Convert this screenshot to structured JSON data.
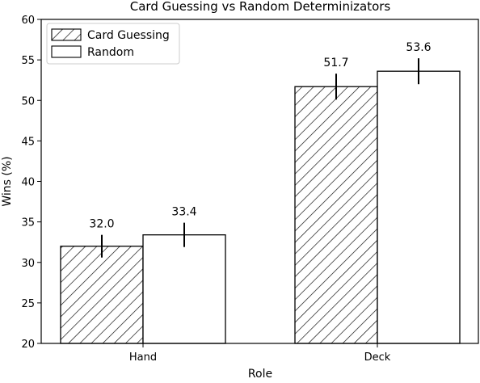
{
  "chart_data": {
    "type": "bar",
    "title": "Card Guessing vs Random Determinizators",
    "xlabel": "Role",
    "ylabel": "Wins (%)",
    "categories": [
      "Hand",
      "Deck"
    ],
    "series": [
      {
        "name": "Card Guessing",
        "values": [
          32.0,
          51.7
        ],
        "error": [
          1.4,
          1.6
        ],
        "labels": [
          "32.0",
          "51.7"
        ],
        "fill": "hatch"
      },
      {
        "name": "Random",
        "values": [
          33.4,
          53.6
        ],
        "error": [
          1.5,
          1.6
        ],
        "labels": [
          "33.4",
          "53.6"
        ],
        "fill": "#ffffff"
      }
    ],
    "ylim": [
      20,
      60
    ],
    "yticks": [
      20,
      25,
      30,
      35,
      40,
      45,
      50,
      55,
      60
    ],
    "ytick_labels": [
      "20",
      "25",
      "30",
      "35",
      "40",
      "45",
      "50",
      "55",
      "60"
    ],
    "grid": false,
    "legend_position": "top-left"
  }
}
